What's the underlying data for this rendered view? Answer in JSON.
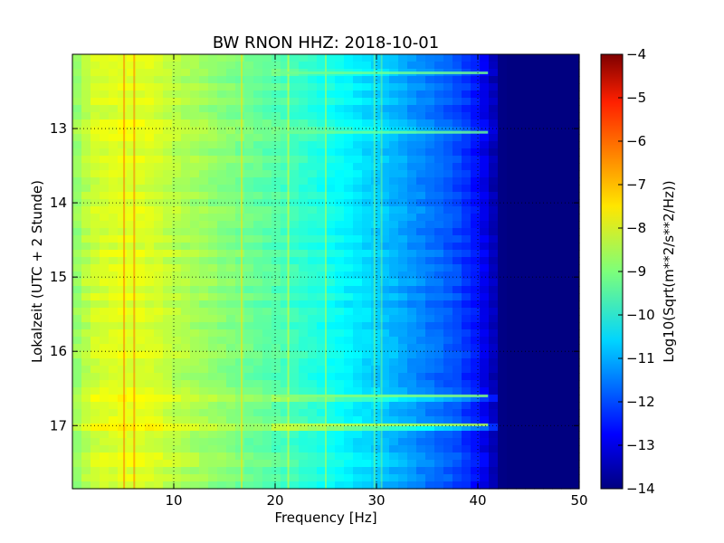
{
  "chart_data": {
    "type": "heatmap",
    "title": "BW RNON HHZ: 2018-10-01",
    "xlabel": "Frequency [Hz]",
    "ylabel": "Lokalzeit (UTC + 2 Stunde)",
    "xlim": [
      0,
      50
    ],
    "ylim": [
      12.0,
      17.85
    ],
    "y_inverted": true,
    "x_ticks": [
      10,
      20,
      30,
      40,
      50
    ],
    "x_tick_labels": [
      "10",
      "20",
      "30",
      "40",
      "50"
    ],
    "y_ticks": [
      13,
      14,
      15,
      16,
      17
    ],
    "y_tick_labels": [
      "13",
      "14",
      "15",
      "16",
      "17"
    ],
    "grid": true,
    "colormap": "jet",
    "colorbar": {
      "label": "Log10(Sqrt(m**2/s**2/Hz))",
      "range": [
        -14,
        -4
      ],
      "ticks": [
        -4,
        -5,
        -6,
        -7,
        -8,
        -9,
        -10,
        -11,
        -12,
        -13,
        -14
      ],
      "tick_labels": [
        "−4",
        "−5",
        "−6",
        "−7",
        "−8",
        "−9",
        "−10",
        "−11",
        "−12",
        "−13",
        "−14"
      ]
    },
    "spectrum_profile": {
      "frequency_hz": [
        0,
        2,
        5,
        8,
        10,
        15,
        20,
        25,
        30,
        35,
        38,
        40,
        41.5,
        42.5,
        50
      ],
      "log_amplitude": [
        -8.9,
        -8.2,
        -8.0,
        -8.1,
        -8.4,
        -8.9,
        -9.4,
        -10.0,
        -10.7,
        -11.5,
        -12.0,
        -12.6,
        -13.4,
        -14.0,
        -14.0
      ]
    },
    "spectral_lines_hz": [
      5.1,
      6.1,
      16.7,
      21.3,
      25.0,
      29.8,
      30.5
    ],
    "time_bands": [
      {
        "time": 16.6,
        "strength": 1.0
      },
      {
        "time": 16.99,
        "strength": 1.8
      },
      {
        "time": 12.25,
        "strength": 0.6
      },
      {
        "time": 13.05,
        "strength": 0.5
      }
    ]
  }
}
